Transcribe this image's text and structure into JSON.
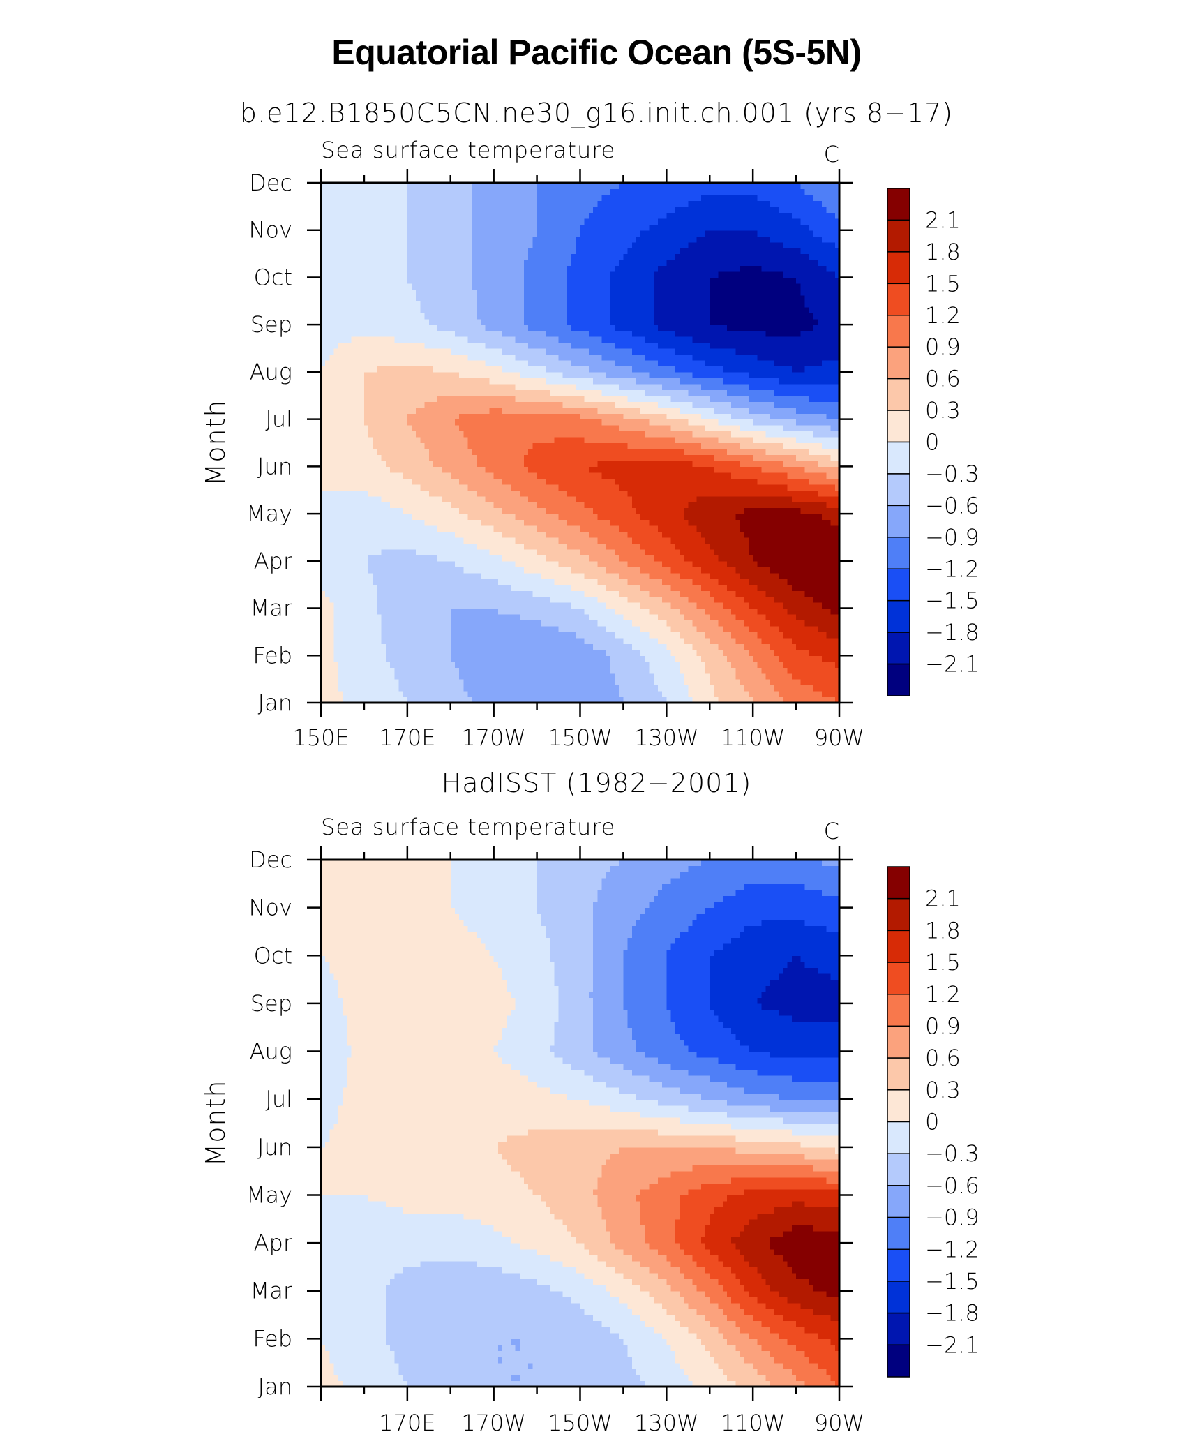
{
  "main_title": "Equatorial Pacific Ocean (5S-5N)",
  "subtitle_top": "b.e12.B1850C5CN.ne30_g16.init.ch.001 (yrs 8−17)",
  "chart_data": [
    {
      "type": "heatmap",
      "title": "b.e12.B1850C5CN.ne30_g16.init.ch.001 (yrs 8−17)",
      "left_string": "Sea surface temperature",
      "right_string": "C",
      "ylabel": "Month",
      "xlabel": "",
      "x_tick_labels": [
        "150E",
        "170E",
        "170W",
        "150W",
        "130W",
        "110W",
        "90W"
      ],
      "y": [
        "Jan",
        "Feb",
        "Mar",
        "Apr",
        "May",
        "Jun",
        "Jul",
        "Aug",
        "Sep",
        "Oct",
        "Nov",
        "Dec"
      ],
      "x": [
        150,
        160,
        170,
        180,
        190,
        200,
        210,
        220,
        230,
        240,
        250,
        260,
        270
      ],
      "xlim": [
        150,
        270
      ],
      "values": [
        [
          0.1,
          -0.1,
          -0.3,
          -0.5,
          -0.7,
          -0.9,
          -0.8,
          -0.6,
          -0.3,
          0.2,
          0.6,
          1.0,
          1.2
        ],
        [
          0.1,
          -0.2,
          -0.4,
          -0.6,
          -0.8,
          -0.9,
          -0.8,
          -0.5,
          -0.1,
          0.4,
          0.9,
          1.4,
          1.6
        ],
        [
          0.1,
          -0.2,
          -0.5,
          -0.6,
          -0.6,
          -0.5,
          -0.3,
          0.1,
          0.5,
          1.0,
          1.5,
          1.9,
          2.2
        ],
        [
          -0.1,
          -0.3,
          -0.4,
          -0.3,
          -0.1,
          0.2,
          0.5,
          0.9,
          1.3,
          1.7,
          2.1,
          2.4,
          2.4
        ],
        [
          -0.1,
          -0.2,
          0.0,
          0.2,
          0.5,
          0.8,
          1.1,
          1.4,
          1.7,
          2.0,
          2.2,
          2.2,
          2.0
        ],
        [
          0.1,
          0.2,
          0.4,
          0.7,
          1.0,
          1.3,
          1.5,
          1.6,
          1.7,
          1.5,
          1.2,
          0.9,
          0.5
        ],
        [
          0.1,
          0.3,
          0.6,
          0.9,
          1.1,
          1.1,
          1.0,
          0.7,
          0.4,
          0.0,
          -0.4,
          -0.7,
          -0.9
        ],
        [
          0.0,
          0.3,
          0.4,
          0.3,
          0.1,
          -0.2,
          -0.5,
          -0.8,
          -1.1,
          -1.4,
          -1.6,
          -1.8,
          -1.7
        ],
        [
          -0.1,
          -0.1,
          -0.2,
          -0.4,
          -0.7,
          -1.0,
          -1.3,
          -1.6,
          -1.9,
          -2.1,
          -2.2,
          -2.2,
          -2.0
        ],
        [
          -0.1,
          -0.2,
          -0.3,
          -0.5,
          -0.7,
          -1.0,
          -1.3,
          -1.6,
          -1.9,
          -2.1,
          -2.2,
          -2.1,
          -1.8
        ],
        [
          -0.1,
          -0.2,
          -0.3,
          -0.5,
          -0.7,
          -0.9,
          -1.2,
          -1.4,
          -1.6,
          -1.8,
          -1.8,
          -1.6,
          -1.3
        ],
        [
          0.0,
          -0.2,
          -0.3,
          -0.5,
          -0.7,
          -0.9,
          -1.1,
          -1.2,
          -1.3,
          -1.4,
          -1.4,
          -1.2,
          -0.9
        ]
      ],
      "levels": [
        -2.1,
        -1.8,
        -1.5,
        -1.2,
        -0.9,
        -0.6,
        -0.3,
        0,
        0.3,
        0.6,
        0.9,
        1.2,
        1.5,
        1.8,
        2.1
      ],
      "colorbar_labels": [
        "2.1",
        "1.8",
        "1.5",
        "1.2",
        "0.9",
        "0.6",
        "0.3",
        "0",
        "−0.3",
        "−0.6",
        "−0.9",
        "−1.2",
        "−1.5",
        "−1.8",
        "−2.1"
      ],
      "colors": [
        "#00007f",
        "#0016b0",
        "#0032d8",
        "#1a4ff5",
        "#4f7ff7",
        "#86a7fa",
        "#b4cafc",
        "#d9e8fd",
        "#fde7d6",
        "#fcc8aa",
        "#fba27d",
        "#f8784c",
        "#ef4d21",
        "#d72b06",
        "#b31a00",
        "#850000"
      ]
    },
    {
      "type": "heatmap",
      "title": "HadISST (1982−2001)",
      "left_string": "Sea surface temperature",
      "right_string": "C",
      "ylabel": "Month",
      "xlabel": "",
      "x_tick_labels": [
        "",
        "170E",
        "170W",
        "150W",
        "130W",
        "110W",
        "90W"
      ],
      "y": [
        "Jan",
        "Feb",
        "Mar",
        "Apr",
        "May",
        "Jun",
        "Jul",
        "Aug",
        "Sep",
        "Oct",
        "Nov",
        "Dec"
      ],
      "x": [
        150,
        160,
        170,
        180,
        190,
        200,
        210,
        220,
        230,
        240,
        250,
        260,
        270
      ],
      "xlim": [
        150,
        270
      ],
      "values": [
        [
          0.1,
          -0.1,
          -0.3,
          -0.5,
          -0.6,
          -0.6,
          -0.5,
          -0.4,
          -0.2,
          0.1,
          0.4,
          0.8,
          1.2
        ],
        [
          0.0,
          -0.2,
          -0.4,
          -0.6,
          -0.6,
          -0.6,
          -0.5,
          -0.3,
          0.0,
          0.4,
          0.9,
          1.3,
          1.6
        ],
        [
          -0.1,
          -0.2,
          -0.4,
          -0.5,
          -0.5,
          -0.4,
          -0.2,
          0.1,
          0.5,
          1.0,
          1.6,
          2.0,
          2.2
        ],
        [
          -0.1,
          -0.2,
          -0.2,
          -0.2,
          -0.1,
          0.1,
          0.3,
          0.7,
          1.1,
          1.6,
          2.0,
          2.3,
          2.3
        ],
        [
          0.0,
          0.0,
          0.1,
          0.1,
          0.2,
          0.3,
          0.5,
          0.8,
          1.1,
          1.4,
          1.6,
          1.7,
          1.6
        ],
        [
          0.0,
          0.1,
          0.1,
          0.2,
          0.3,
          0.4,
          0.5,
          0.6,
          0.6,
          0.6,
          0.5,
          0.4,
          0.2
        ],
        [
          -0.1,
          0.1,
          0.1,
          0.2,
          0.2,
          0.1,
          0.0,
          -0.2,
          -0.4,
          -0.6,
          -0.8,
          -0.9,
          -0.9
        ],
        [
          -0.2,
          0.1,
          0.1,
          0.2,
          0.0,
          -0.2,
          -0.5,
          -0.8,
          -1.1,
          -1.3,
          -1.5,
          -1.6,
          -1.6
        ],
        [
          -0.1,
          0.1,
          0.2,
          0.3,
          0.1,
          -0.1,
          -0.5,
          -0.9,
          -1.2,
          -1.5,
          -1.8,
          -1.9,
          -1.9
        ],
        [
          0.0,
          0.1,
          0.1,
          0.1,
          0.0,
          -0.2,
          -0.5,
          -0.9,
          -1.2,
          -1.5,
          -1.7,
          -1.8,
          -1.7
        ],
        [
          0.1,
          0.1,
          0.1,
          0.0,
          -0.1,
          -0.3,
          -0.5,
          -0.8,
          -1.0,
          -1.2,
          -1.4,
          -1.4,
          -1.3
        ],
        [
          0.1,
          0.1,
          0.1,
          0.0,
          -0.2,
          -0.3,
          -0.5,
          -0.6,
          -0.8,
          -0.9,
          -1.0,
          -1.0,
          -0.8
        ]
      ],
      "levels": [
        -2.1,
        -1.8,
        -1.5,
        -1.2,
        -0.9,
        -0.6,
        -0.3,
        0,
        0.3,
        0.6,
        0.9,
        1.2,
        1.5,
        1.8,
        2.1
      ],
      "colorbar_labels": [
        "2.1",
        "1.8",
        "1.5",
        "1.2",
        "0.9",
        "0.6",
        "0.3",
        "0",
        "−0.3",
        "−0.6",
        "−0.9",
        "−1.2",
        "−1.5",
        "−1.8",
        "−2.1"
      ],
      "colors": [
        "#00007f",
        "#0016b0",
        "#0032d8",
        "#1a4ff5",
        "#4f7ff7",
        "#86a7fa",
        "#b4cafc",
        "#d9e8fd",
        "#fde7d6",
        "#fcc8aa",
        "#fba27d",
        "#f8784c",
        "#ef4d21",
        "#d72b06",
        "#b31a00",
        "#850000"
      ]
    }
  ]
}
